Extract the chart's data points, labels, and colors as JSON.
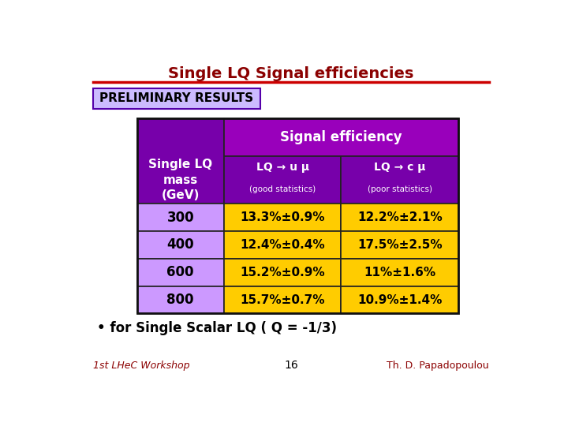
{
  "title": "Single LQ Signal efficiencies",
  "title_color": "#8B0000",
  "preliminary_text": "PRELIMINARY RESULTS",
  "preliminary_bg": "#ccbbff",
  "preliminary_border": "#5500aa",
  "header_bg_left": "#7700aa",
  "header_bg_right": "#9900cc",
  "subheader_bg": "#7700aa",
  "data_col1_bg": "#cc99ff",
  "data_col2_bg": "#ffcc00",
  "table_border": "#222222",
  "signal_efficiency_label": "Signal efficiency",
  "rows": [
    {
      "mass": "300",
      "col2": "13.3%±0.9%",
      "col3": "12.2%±2.1%"
    },
    {
      "mass": "400",
      "col2": "12.4%±0.4%",
      "col3": "17.5%±2.5%"
    },
    {
      "mass": "600",
      "col2": "15.2%±0.9%",
      "col3": "11%±1.6%"
    },
    {
      "mass": "800",
      "col2": "15.7%±0.7%",
      "col3": "10.9%±1.4%"
    }
  ],
  "bullet_text": "• for Single Scalar LQ ( Q = -1/3)",
  "footer_left": "1st LHeC Workshop",
  "footer_center": "16",
  "footer_right": "Th. D. Papadopoulou",
  "footer_color": "#8B0000",
  "bg_color": "#ffffff",
  "line_color": "#cc0000",
  "col2_header": "LQ → u μ",
  "col2_subheader": "(good statistics)",
  "col3_header": "LQ → c μ",
  "col3_subheader": "(poor statistics)"
}
